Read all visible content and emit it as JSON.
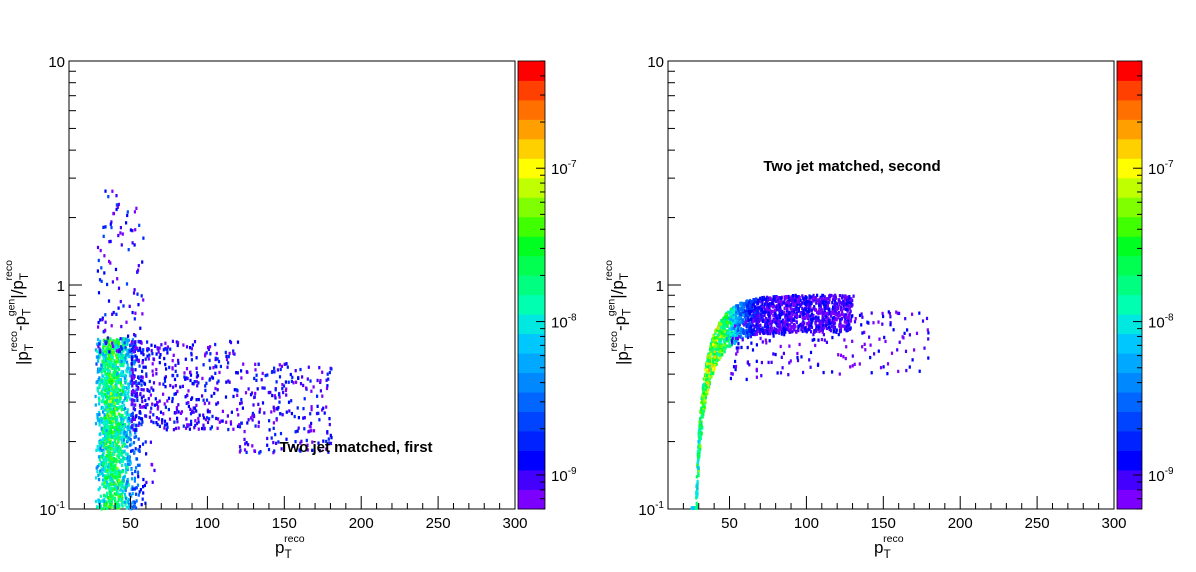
{
  "chart_data": [
    {
      "type": "heatmap",
      "annotation": "Two jet matched, first",
      "xlabel": "p_T^reco",
      "ylabel": "|p_T^reco-p_T^gen|/p_T^reco",
      "xlim": [
        10,
        300
      ],
      "ylim": [
        0.1,
        10
      ],
      "yscale": "log",
      "x_ticks": [
        "50",
        "100",
        "150",
        "200",
        "250",
        "300"
      ],
      "y_ticks": [
        "10^-1",
        "1",
        "10"
      ],
      "zscale": "log",
      "zlim": [
        6e-10,
        5e-07
      ],
      "z_ticks": [
        "10^-9",
        "10^-8",
        "10^-7"
      ],
      "distribution": "dense at low pT (25-60) across 0.1-0.55, tail to pT~180, sparse column up to ~2.5 near pT~30"
    },
    {
      "type": "heatmap",
      "annotation": "Two jet matched, second",
      "xlabel": "p_T^reco",
      "ylabel": "|p_T^reco-p_T^gen|/p_T^reco",
      "xlim": [
        10,
        300
      ],
      "ylim": [
        0.1,
        10
      ],
      "yscale": "log",
      "x_ticks": [
        "50",
        "100",
        "150",
        "200",
        "250",
        "300"
      ],
      "y_ticks": [
        "10^-1",
        "1",
        "10"
      ],
      "zscale": "log",
      "zlim": [
        6e-10,
        5e-07
      ],
      "z_ticks": [
        "10^-9",
        "10^-8",
        "10^-7"
      ],
      "distribution": "curved band rising from ~0.1 at pT~28 to ~0.8 at pT~110, sparse to pT~180"
    }
  ],
  "palette": [
    "#7b00ff",
    "#4400ff",
    "#0000ff",
    "#0022ff",
    "#0044ff",
    "#0066ff",
    "#0088ff",
    "#00a8ff",
    "#00c8ff",
    "#00e8e0",
    "#00ffb0",
    "#00ff80",
    "#00ff50",
    "#00ff20",
    "#40ff00",
    "#80ff00",
    "#c0ff00",
    "#ffff00",
    "#ffd000",
    "#ffa000",
    "#ff7000",
    "#ff4000",
    "#ff0000"
  ]
}
